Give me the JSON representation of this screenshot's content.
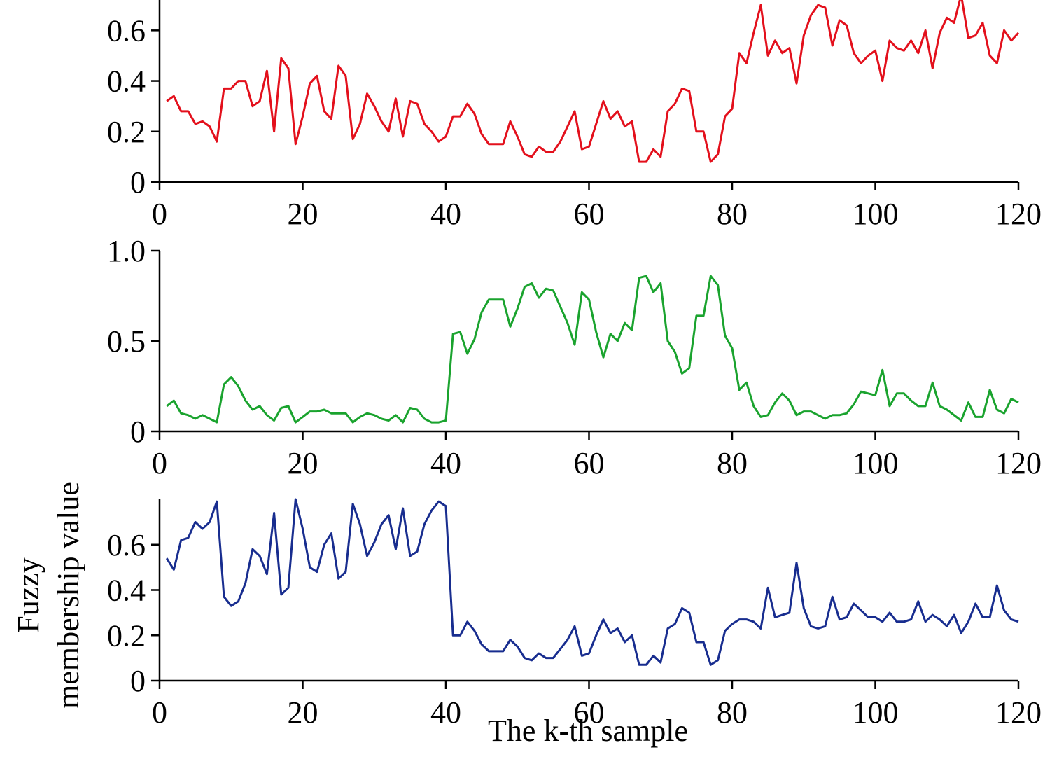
{
  "chart_data": {
    "type": "line",
    "xlabel": "The k-th sample",
    "ylabel": [
      "Fuzzy",
      "membership value"
    ],
    "xlim": [
      0,
      120
    ],
    "xticks": [
      0,
      20,
      40,
      60,
      80,
      100,
      120
    ],
    "grid": false,
    "panels": [
      {
        "color": "#e3101c",
        "ylim": [
          0,
          0.72
        ],
        "yticks": [
          0,
          0.2,
          0.4,
          0.6
        ],
        "ytick_labels": [
          "0",
          "0.2",
          "0.4",
          "0.6"
        ],
        "x": [
          1,
          2,
          3,
          4,
          5,
          6,
          7,
          8,
          9,
          10,
          11,
          12,
          13,
          14,
          15,
          16,
          17,
          18,
          19,
          20,
          21,
          22,
          23,
          24,
          25,
          26,
          27,
          28,
          29,
          30,
          31,
          32,
          33,
          34,
          35,
          36,
          37,
          38,
          39,
          40,
          41,
          42,
          43,
          44,
          45,
          46,
          47,
          48,
          49,
          50,
          51,
          52,
          53,
          54,
          55,
          56,
          57,
          58,
          59,
          60,
          61,
          62,
          63,
          64,
          65,
          66,
          67,
          68,
          69,
          70,
          71,
          72,
          73,
          74,
          75,
          76,
          77,
          78,
          79,
          80,
          81,
          82,
          83,
          84,
          85,
          86,
          87,
          88,
          89,
          90,
          91,
          92,
          93,
          94,
          95,
          96,
          97,
          98,
          99,
          100,
          101,
          102,
          103,
          104,
          105,
          106,
          107,
          108,
          109,
          110,
          111,
          112,
          113,
          114,
          115,
          116,
          117,
          118,
          119,
          120
        ],
        "values": [
          0.32,
          0.34,
          0.28,
          0.28,
          0.23,
          0.24,
          0.22,
          0.16,
          0.37,
          0.37,
          0.4,
          0.4,
          0.3,
          0.32,
          0.44,
          0.2,
          0.49,
          0.45,
          0.15,
          0.26,
          0.39,
          0.42,
          0.28,
          0.25,
          0.46,
          0.42,
          0.17,
          0.23,
          0.35,
          0.3,
          0.24,
          0.2,
          0.33,
          0.18,
          0.32,
          0.31,
          0.23,
          0.2,
          0.16,
          0.18,
          0.26,
          0.26,
          0.31,
          0.27,
          0.19,
          0.15,
          0.15,
          0.15,
          0.24,
          0.18,
          0.11,
          0.1,
          0.14,
          0.12,
          0.12,
          0.16,
          0.22,
          0.28,
          0.13,
          0.14,
          0.23,
          0.32,
          0.25,
          0.28,
          0.22,
          0.24,
          0.08,
          0.08,
          0.13,
          0.1,
          0.28,
          0.31,
          0.37,
          0.36,
          0.2,
          0.2,
          0.08,
          0.11,
          0.26,
          0.29,
          0.51,
          0.47,
          0.59,
          0.7,
          0.5,
          0.56,
          0.51,
          0.53,
          0.39,
          0.58,
          0.66,
          0.7,
          0.69,
          0.54,
          0.64,
          0.62,
          0.51,
          0.47,
          0.5,
          0.52,
          0.4,
          0.56,
          0.53,
          0.52,
          0.56,
          0.51,
          0.6,
          0.45,
          0.59,
          0.65,
          0.63,
          0.74,
          0.57,
          0.58,
          0.63,
          0.5,
          0.47,
          0.6,
          0.56,
          0.59
        ]
      },
      {
        "color": "#1aa32e",
        "ylim": [
          0,
          1.0
        ],
        "yticks": [
          0,
          0.5,
          1.0
        ],
        "ytick_labels": [
          "0",
          "0.5",
          "1.0"
        ],
        "x": [
          1,
          2,
          3,
          4,
          5,
          6,
          7,
          8,
          9,
          10,
          11,
          12,
          13,
          14,
          15,
          16,
          17,
          18,
          19,
          20,
          21,
          22,
          23,
          24,
          25,
          26,
          27,
          28,
          29,
          30,
          31,
          32,
          33,
          34,
          35,
          36,
          37,
          38,
          39,
          40,
          41,
          42,
          43,
          44,
          45,
          46,
          47,
          48,
          49,
          50,
          51,
          52,
          53,
          54,
          55,
          56,
          57,
          58,
          59,
          60,
          61,
          62,
          63,
          64,
          65,
          66,
          67,
          68,
          69,
          70,
          71,
          72,
          73,
          74,
          75,
          76,
          77,
          78,
          79,
          80,
          81,
          82,
          83,
          84,
          85,
          86,
          87,
          88,
          89,
          90,
          91,
          92,
          93,
          94,
          95,
          96,
          97,
          98,
          99,
          100,
          101,
          102,
          103,
          104,
          105,
          106,
          107,
          108,
          109,
          110,
          111,
          112,
          113,
          114,
          115,
          116,
          117,
          118,
          119,
          120
        ],
        "values": [
          0.14,
          0.17,
          0.1,
          0.09,
          0.07,
          0.09,
          0.07,
          0.05,
          0.26,
          0.3,
          0.25,
          0.17,
          0.12,
          0.14,
          0.09,
          0.06,
          0.13,
          0.14,
          0.05,
          0.08,
          0.11,
          0.11,
          0.12,
          0.1,
          0.1,
          0.1,
          0.05,
          0.08,
          0.1,
          0.09,
          0.07,
          0.06,
          0.09,
          0.05,
          0.13,
          0.12,
          0.07,
          0.05,
          0.05,
          0.06,
          0.54,
          0.55,
          0.43,
          0.51,
          0.66,
          0.73,
          0.73,
          0.73,
          0.58,
          0.68,
          0.8,
          0.82,
          0.74,
          0.79,
          0.78,
          0.69,
          0.6,
          0.48,
          0.77,
          0.73,
          0.55,
          0.41,
          0.54,
          0.5,
          0.6,
          0.56,
          0.85,
          0.86,
          0.77,
          0.82,
          0.5,
          0.44,
          0.32,
          0.35,
          0.64,
          0.64,
          0.86,
          0.81,
          0.53,
          0.46,
          0.23,
          0.27,
          0.14,
          0.08,
          0.09,
          0.16,
          0.21,
          0.17,
          0.09,
          0.11,
          0.11,
          0.09,
          0.07,
          0.09,
          0.09,
          0.1,
          0.15,
          0.22,
          0.21,
          0.2,
          0.34,
          0.14,
          0.21,
          0.21,
          0.17,
          0.14,
          0.14,
          0.27,
          0.14,
          0.12,
          0.09,
          0.06,
          0.16,
          0.08,
          0.08,
          0.23,
          0.12,
          0.1,
          0.18,
          0.16
        ]
      },
      {
        "color": "#182d8f",
        "ylim": [
          0,
          0.8
        ],
        "yticks": [
          0,
          0.2,
          0.4,
          0.6
        ],
        "ytick_labels": [
          "0",
          "0.2",
          "0.4",
          "0.6"
        ],
        "x": [
          1,
          2,
          3,
          4,
          5,
          6,
          7,
          8,
          9,
          10,
          11,
          12,
          13,
          14,
          15,
          16,
          17,
          18,
          19,
          20,
          21,
          22,
          23,
          24,
          25,
          26,
          27,
          28,
          29,
          30,
          31,
          32,
          33,
          34,
          35,
          36,
          37,
          38,
          39,
          40,
          41,
          42,
          43,
          44,
          45,
          46,
          47,
          48,
          49,
          50,
          51,
          52,
          53,
          54,
          55,
          56,
          57,
          58,
          59,
          60,
          61,
          62,
          63,
          64,
          65,
          66,
          67,
          68,
          69,
          70,
          71,
          72,
          73,
          74,
          75,
          76,
          77,
          78,
          79,
          80,
          81,
          82,
          83,
          84,
          85,
          86,
          87,
          88,
          89,
          90,
          91,
          92,
          93,
          94,
          95,
          96,
          97,
          98,
          99,
          100,
          101,
          102,
          103,
          104,
          105,
          106,
          107,
          108,
          109,
          110,
          111,
          112,
          113,
          114,
          115,
          116,
          117,
          118,
          119,
          120
        ],
        "values": [
          0.54,
          0.49,
          0.62,
          0.63,
          0.7,
          0.67,
          0.7,
          0.79,
          0.37,
          0.33,
          0.35,
          0.43,
          0.58,
          0.55,
          0.47,
          0.74,
          0.38,
          0.41,
          0.8,
          0.67,
          0.5,
          0.48,
          0.6,
          0.65,
          0.45,
          0.48,
          0.78,
          0.69,
          0.55,
          0.61,
          0.69,
          0.73,
          0.58,
          0.76,
          0.55,
          0.57,
          0.69,
          0.75,
          0.79,
          0.77,
          0.2,
          0.2,
          0.26,
          0.22,
          0.16,
          0.13,
          0.13,
          0.13,
          0.18,
          0.15,
          0.1,
          0.09,
          0.12,
          0.1,
          0.1,
          0.14,
          0.18,
          0.24,
          0.11,
          0.12,
          0.2,
          0.27,
          0.21,
          0.23,
          0.17,
          0.2,
          0.07,
          0.07,
          0.11,
          0.08,
          0.23,
          0.25,
          0.32,
          0.3,
          0.17,
          0.17,
          0.07,
          0.09,
          0.22,
          0.25,
          0.27,
          0.27,
          0.26,
          0.23,
          0.41,
          0.28,
          0.29,
          0.3,
          0.52,
          0.32,
          0.24,
          0.23,
          0.24,
          0.37,
          0.27,
          0.28,
          0.34,
          0.31,
          0.28,
          0.28,
          0.26,
          0.3,
          0.26,
          0.26,
          0.27,
          0.35,
          0.26,
          0.29,
          0.27,
          0.24,
          0.29,
          0.21,
          0.26,
          0.34,
          0.28,
          0.28,
          0.42,
          0.31,
          0.27,
          0.26
        ]
      }
    ]
  }
}
